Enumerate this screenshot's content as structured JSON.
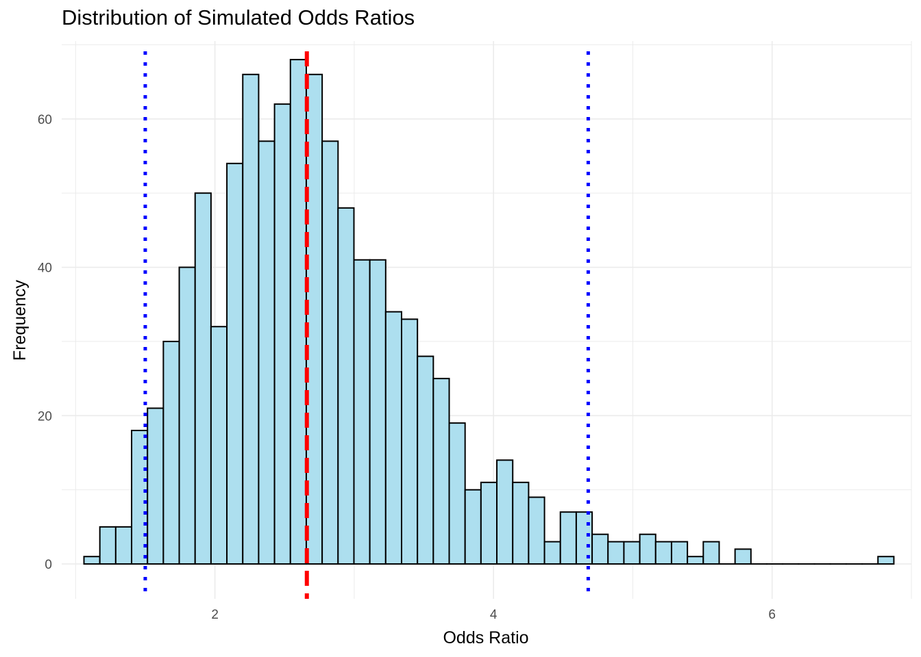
{
  "chart_data": {
    "type": "bar",
    "subtype": "histogram",
    "title": "Distribution of Simulated Odds Ratios",
    "xlabel": "Odds Ratio",
    "ylabel": "Frequency",
    "xlim": [
      0.9,
      7.0
    ],
    "ylim": [
      -4.7,
      70.5
    ],
    "x_ticks": [
      2,
      4,
      6
    ],
    "y_ticks": [
      0,
      20,
      40,
      60
    ],
    "grid": true,
    "bin_width": 0.114,
    "bin_start": 1.06,
    "counts": [
      1,
      5,
      5,
      18,
      21,
      30,
      40,
      50,
      32,
      54,
      66,
      57,
      62,
      68,
      66,
      57,
      48,
      41,
      41,
      34,
      33,
      28,
      25,
      19,
      10,
      11,
      14,
      11,
      9,
      3,
      7,
      7,
      4,
      3,
      3,
      4,
      3,
      3,
      1,
      3,
      0,
      2,
      0,
      0,
      0,
      0,
      0,
      0,
      0,
      0,
      1
    ],
    "fill_color": "#ADDFEF",
    "edge_color": "#000000",
    "reference_lines": [
      {
        "x": 2.66,
        "color": "#FF0000",
        "style": "dashed"
      },
      {
        "x": 1.5,
        "color": "#0000FF",
        "style": "dotted"
      },
      {
        "x": 4.68,
        "color": "#0000FF",
        "style": "dotted"
      }
    ]
  }
}
